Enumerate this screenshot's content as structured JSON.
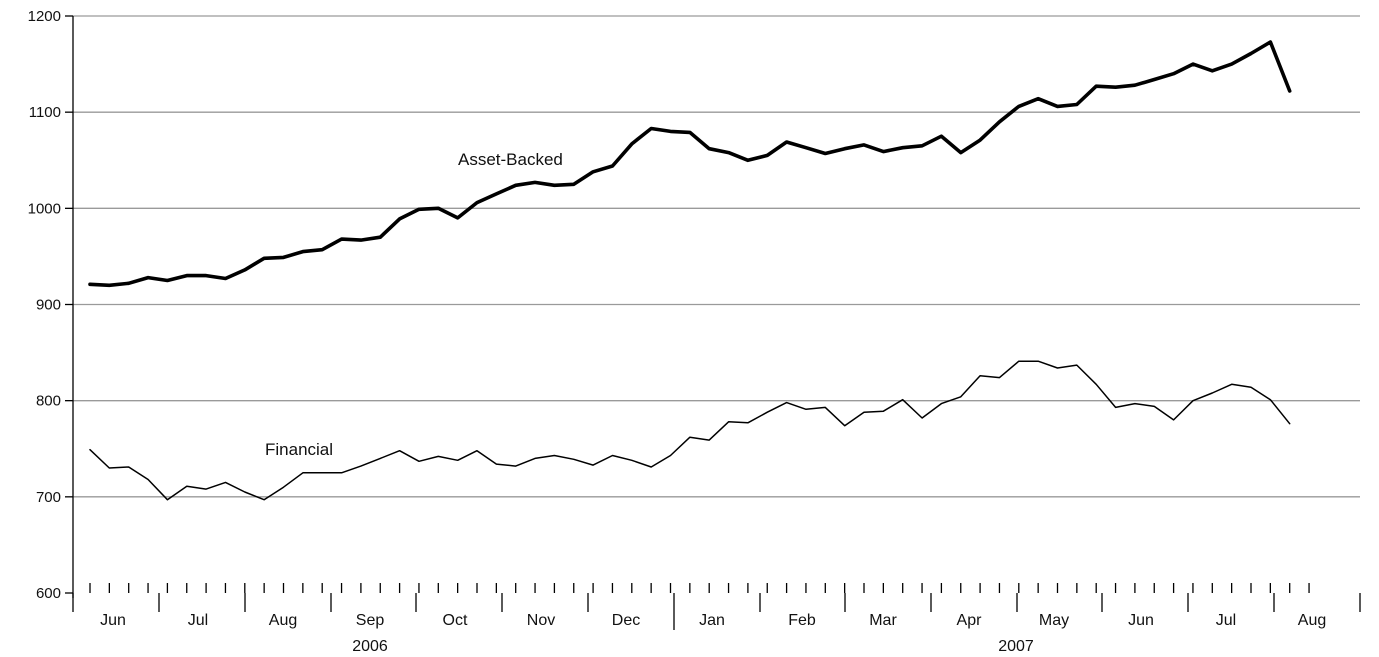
{
  "chart_data": {
    "type": "line",
    "title": "",
    "xlabel": "",
    "ylabel": "",
    "ylim": [
      600,
      1200
    ],
    "yticks": [
      600,
      700,
      800,
      900,
      1000,
      1100,
      1200
    ],
    "grid": true,
    "month_labels": [
      "Jun",
      "Jul",
      "Aug",
      "Sep",
      "Oct",
      "Nov",
      "Dec",
      "Jan",
      "Feb",
      "Mar",
      "Apr",
      "May",
      "Jun",
      "Jul",
      "Aug"
    ],
    "years": [
      "2006",
      "2007"
    ],
    "x_period": "weekly, June 2006 – August 2007",
    "series": [
      {
        "name": "Asset-Backed",
        "line_style": "thick",
        "values": [
          921,
          920,
          922,
          928,
          925,
          930,
          930,
          927,
          936,
          948,
          949,
          955,
          957,
          968,
          967,
          970,
          989,
          999,
          1000,
          990,
          1006,
          1015,
          1024,
          1027,
          1024,
          1025,
          1038,
          1044,
          1067,
          1083,
          1080,
          1079,
          1062,
          1058,
          1050,
          1055,
          1069,
          1063,
          1057,
          1062,
          1066,
          1059,
          1063,
          1065,
          1075,
          1058,
          1071,
          1090,
          1106,
          1114,
          1106,
          1108,
          1127,
          1126,
          1128,
          1134,
          1140,
          1150,
          1143,
          1150,
          1161,
          1173,
          1122
        ]
      },
      {
        "name": "Financial",
        "line_style": "thin",
        "values": [
          749,
          730,
          731,
          718,
          697,
          711,
          708,
          715,
          705,
          697,
          710,
          725,
          725,
          725,
          732,
          740,
          748,
          737,
          742,
          738,
          748,
          734,
          732,
          740,
          743,
          739,
          733,
          743,
          738,
          731,
          743,
          762,
          759,
          778,
          777,
          788,
          798,
          791,
          793,
          774,
          788,
          789,
          801,
          782,
          797,
          804,
          826,
          824,
          841,
          841,
          834,
          837,
          817,
          793,
          797,
          794,
          780,
          800,
          808,
          817,
          814,
          801,
          776
        ]
      }
    ]
  }
}
